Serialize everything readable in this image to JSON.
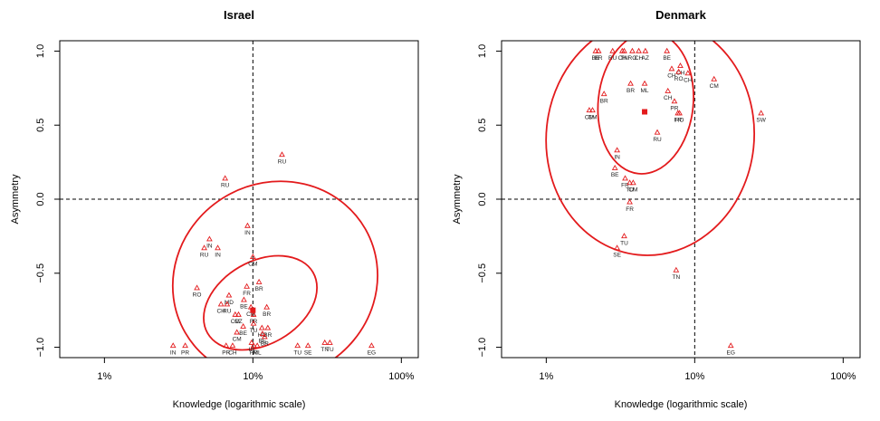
{
  "chart_data": [
    {
      "type": "scatter",
      "title": "Israel",
      "xlabel": "Knowledge (logarithmic scale)",
      "ylabel": "Asymmetry",
      "x_scale": "log",
      "xlim": [
        0.005,
        1.3
      ],
      "ylim": [
        -1.07,
        1.07
      ],
      "x_ticks": [
        0.01,
        0.1,
        1.0
      ],
      "x_tick_labels": [
        "1%",
        "10%",
        "100%"
      ],
      "y_ticks": [
        -1.0,
        -0.5,
        0.0,
        0.5,
        1.0
      ],
      "y_tick_labels": [
        "−1.0",
        "−0.5",
        "0.0",
        "0.5",
        "1.0"
      ],
      "reference_lines": {
        "x": 0.1,
        "y": 0.0
      },
      "mean_point": {
        "x": 0.1,
        "y": -0.75
      },
      "ellipses": [
        {
          "cx_log10": -0.85,
          "cy": -0.55,
          "rx_log10": 0.7,
          "ry": 0.66,
          "tilt_deg": -30
        },
        {
          "cx_log10": -0.95,
          "cy": -0.7,
          "rx_log10": 0.41,
          "ry": 0.28,
          "tilt_deg": -30
        }
      ],
      "points": [
        {
          "label": "RU",
          "x": 0.157,
          "y": 0.3
        },
        {
          "label": "RU",
          "x": 0.065,
          "y": 0.14
        },
        {
          "label": "IN",
          "x": 0.092,
          "y": -0.18
        },
        {
          "label": "IN",
          "x": 0.051,
          "y": -0.27
        },
        {
          "label": "RU",
          "x": 0.047,
          "y": -0.33
        },
        {
          "label": "IN",
          "x": 0.058,
          "y": -0.33
        },
        {
          "label": "CM",
          "x": 0.1,
          "y": -0.39
        },
        {
          "label": "RO",
          "x": 0.042,
          "y": -0.6
        },
        {
          "label": "FR",
          "x": 0.091,
          "y": -0.59
        },
        {
          "label": "BR",
          "x": 0.11,
          "y": -0.56
        },
        {
          "label": "MD",
          "x": 0.069,
          "y": -0.65
        },
        {
          "label": "BE",
          "x": 0.087,
          "y": -0.68
        },
        {
          "label": "CH",
          "x": 0.061,
          "y": -0.71
        },
        {
          "label": "RU",
          "x": 0.067,
          "y": -0.71
        },
        {
          "label": "CM",
          "x": 0.097,
          "y": -0.73
        },
        {
          "label": "BR",
          "x": 0.124,
          "y": -0.73
        },
        {
          "label": "FR",
          "x": 0.101,
          "y": -0.78
        },
        {
          "label": "CM",
          "x": 0.076,
          "y": -0.78
        },
        {
          "label": "CZ",
          "x": 0.08,
          "y": -0.78
        },
        {
          "label": "BE",
          "x": 0.086,
          "y": -0.86
        },
        {
          "label": "TU",
          "x": 0.101,
          "y": -0.84
        },
        {
          "label": "HU",
          "x": 0.115,
          "y": -0.87
        },
        {
          "label": "BR",
          "x": 0.126,
          "y": -0.87
        },
        {
          "label": "CM",
          "x": 0.078,
          "y": -0.9
        },
        {
          "label": "BE",
          "x": 0.116,
          "y": -0.91
        },
        {
          "label": "BR",
          "x": 0.12,
          "y": -0.93
        },
        {
          "label": "IN",
          "x": 0.029,
          "y": -0.99
        },
        {
          "label": "PR",
          "x": 0.035,
          "y": -0.99
        },
        {
          "label": "PR",
          "x": 0.066,
          "y": -0.99
        },
        {
          "label": "CH",
          "x": 0.073,
          "y": -0.99
        },
        {
          "label": "IN",
          "x": 0.098,
          "y": -0.97
        },
        {
          "label": "FR",
          "x": 0.101,
          "y": -0.99
        },
        {
          "label": "ML",
          "x": 0.107,
          "y": -0.99
        },
        {
          "label": "TU",
          "x": 0.2,
          "y": -0.99
        },
        {
          "label": "SE",
          "x": 0.235,
          "y": -0.99
        },
        {
          "label": "TN",
          "x": 0.305,
          "y": -0.97
        },
        {
          "label": "TU",
          "x": 0.33,
          "y": -0.97
        },
        {
          "label": "EG",
          "x": 0.63,
          "y": -0.99
        }
      ]
    },
    {
      "type": "scatter",
      "title": "Denmark",
      "xlabel": "Knowledge (logarithmic scale)",
      "ylabel": "Asymmetry",
      "x_scale": "log",
      "xlim": [
        0.005,
        1.3
      ],
      "ylim": [
        -1.07,
        1.07
      ],
      "x_ticks": [
        0.01,
        0.1,
        1.0
      ],
      "x_tick_labels": [
        "1%",
        "10%",
        "100%"
      ],
      "y_ticks": [
        -1.0,
        -0.5,
        0.0,
        0.5,
        1.0
      ],
      "y_tick_labels": [
        "−1.0",
        "−0.5",
        "0.0",
        "0.5",
        "1.0"
      ],
      "reference_lines": {
        "x": 0.1,
        "y": 0.0
      },
      "mean_point": {
        "x": 0.046,
        "y": 0.59
      },
      "ellipses": [
        {
          "cx_log10": -1.3,
          "cy": 0.42,
          "rx_log10": 0.7,
          "ry": 0.8,
          "tilt_deg": 6
        },
        {
          "cx_log10": -1.33,
          "cy": 0.65,
          "rx_log10": 0.32,
          "ry": 0.48,
          "tilt_deg": 6
        }
      ],
      "points": [
        {
          "label": "BE",
          "x": 0.0215,
          "y": 1.0
        },
        {
          "label": "BR",
          "x": 0.0225,
          "y": 1.0
        },
        {
          "label": "RU",
          "x": 0.028,
          "y": 1.0
        },
        {
          "label": "CH",
          "x": 0.0325,
          "y": 1.0
        },
        {
          "label": "TN",
          "x": 0.0335,
          "y": 1.0
        },
        {
          "label": "RO",
          "x": 0.038,
          "y": 1.0
        },
        {
          "label": "CH",
          "x": 0.042,
          "y": 1.0
        },
        {
          "label": "AZ",
          "x": 0.0465,
          "y": 1.0
        },
        {
          "label": "BE",
          "x": 0.065,
          "y": 1.0
        },
        {
          "label": "CH",
          "x": 0.08,
          "y": 0.9
        },
        {
          "label": "CH",
          "x": 0.07,
          "y": 0.88
        },
        {
          "label": "RO",
          "x": 0.078,
          "y": 0.86
        },
        {
          "label": "CH",
          "x": 0.09,
          "y": 0.85
        },
        {
          "label": "CM",
          "x": 0.135,
          "y": 0.81
        },
        {
          "label": "BR",
          "x": 0.037,
          "y": 0.78
        },
        {
          "label": "ML",
          "x": 0.046,
          "y": 0.78
        },
        {
          "label": "CH",
          "x": 0.066,
          "y": 0.73
        },
        {
          "label": "BR",
          "x": 0.0245,
          "y": 0.71
        },
        {
          "label": "PR",
          "x": 0.073,
          "y": 0.66
        },
        {
          "label": "CM",
          "x": 0.0195,
          "y": 0.6
        },
        {
          "label": "CM",
          "x": 0.0205,
          "y": 0.6
        },
        {
          "label": "FR",
          "x": 0.077,
          "y": 0.58
        },
        {
          "label": "RO",
          "x": 0.079,
          "y": 0.58
        },
        {
          "label": "SW",
          "x": 0.28,
          "y": 0.58
        },
        {
          "label": "RU",
          "x": 0.056,
          "y": 0.45
        },
        {
          "label": "IN",
          "x": 0.03,
          "y": 0.33
        },
        {
          "label": "BE",
          "x": 0.029,
          "y": 0.21
        },
        {
          "label": "FR",
          "x": 0.034,
          "y": 0.14
        },
        {
          "label": "TU",
          "x": 0.0365,
          "y": 0.11
        },
        {
          "label": "CM",
          "x": 0.0385,
          "y": 0.11
        },
        {
          "label": "FR",
          "x": 0.0365,
          "y": -0.02
        },
        {
          "label": "TU",
          "x": 0.0335,
          "y": -0.25
        },
        {
          "label": "SE",
          "x": 0.03,
          "y": -0.33
        },
        {
          "label": "TN",
          "x": 0.075,
          "y": -0.48
        },
        {
          "label": "EG",
          "x": 0.175,
          "y": -0.99
        }
      ]
    }
  ]
}
